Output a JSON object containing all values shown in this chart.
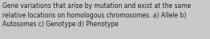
{
  "text_line1": "Gene variations that arise by mutation and exist at the same",
  "text_line2": "relative locations on homologous chromosomes. a) Allele b)",
  "text_line3": "Autosomes c) Genotype d) Phenotype",
  "background_color": "#c9c9c9",
  "text_color": "#222222",
  "font_size": 5.5,
  "fig_width": 2.62,
  "fig_height": 0.49,
  "dpi": 100
}
